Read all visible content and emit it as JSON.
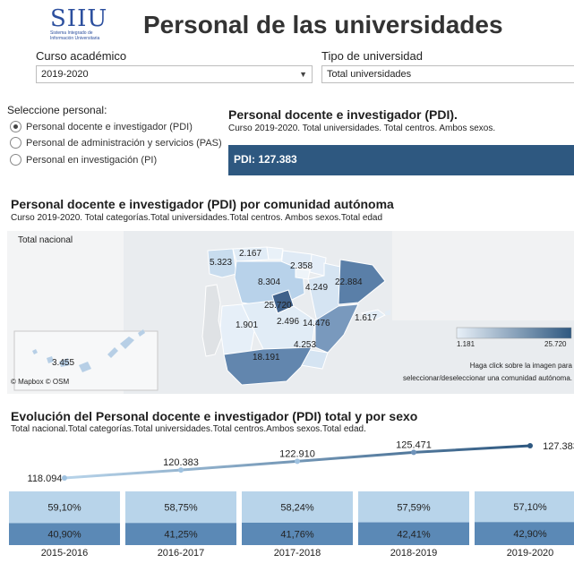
{
  "header": {
    "logo_text": "SIIU",
    "logo_sub1": "Sistema Integrado de",
    "logo_sub2": "Información Universitaria",
    "title": "Personal de las universidades"
  },
  "filters": {
    "curso_label": "Curso académico",
    "curso_value": "2019-2020",
    "tipo_label": "Tipo de universidad",
    "tipo_value": "Total universidades"
  },
  "personal_selector": {
    "title": "Seleccione personal:",
    "options": [
      {
        "label": "Personal docente e investigador (PDI)",
        "selected": true
      },
      {
        "label": "Personal de administración y servicios (PAS)",
        "selected": false
      },
      {
        "label": "Personal en investigación (PI)",
        "selected": false
      }
    ]
  },
  "pdi_summary": {
    "title": "Personal docente e investigador (PDI).",
    "subtitle": "Curso  2019-2020. Total universidades. Total centros. Ambos sexos.",
    "bar_text": "PDI: 127.383"
  },
  "map_section": {
    "title": "Personal docente e investigador (PDI) por comunidad autónoma",
    "subtitle": "Curso 2019-2020. Total categorías.Total universidades.Total centros. Ambos sexos.Total edad",
    "map_label": "Total nacional",
    "attribution": "© Mapbox  © OSM",
    "legend_min": "1.181",
    "legend_max": "25.720",
    "note_line1": "Haga click sobre la imagen para",
    "note_line2": "seleccionar/deseleccionar una comunidad autónoma.",
    "regions": [
      {
        "name": "Galicia",
        "value": "5.323",
        "num": 5323
      },
      {
        "name": "Asturias",
        "value": "2.167",
        "num": 2167
      },
      {
        "name": "País Vasco",
        "value": "2.358",
        "num": 2358
      },
      {
        "name": "Castilla y León",
        "value": "8.304",
        "num": 8304
      },
      {
        "name": "Aragón",
        "value": "4.249",
        "num": 4249
      },
      {
        "name": "Cataluña",
        "value": "22.884",
        "num": 22884
      },
      {
        "name": "Madrid",
        "value": "25.720",
        "num": 25720
      },
      {
        "name": "Castilla-La Mancha",
        "value": "2.496",
        "num": 2496
      },
      {
        "name": "Extremadura",
        "value": "1.901",
        "num": 1901
      },
      {
        "name": "C. Valenciana",
        "value": "14.476",
        "num": 14476
      },
      {
        "name": "Baleares",
        "value": "1.617",
        "num": 1617
      },
      {
        "name": "Murcia",
        "value": "4.253",
        "num": 4253
      },
      {
        "name": "Andalucía",
        "value": "18.191",
        "num": 18191
      },
      {
        "name": "Canarias",
        "value": "3.455",
        "num": 3455
      }
    ]
  },
  "chart_data": {
    "type": "line",
    "title": "Evolución del Personal docente e investigador (PDI) total y por sexo",
    "subtitle": "Total nacional.Total categorías.Total universidades.Total centros.Ambos sexos.Total edad.",
    "categories": [
      "2015-2016",
      "2016-2017",
      "2017-2018",
      "2018-2019",
      "2019-2020"
    ],
    "series": [
      {
        "values": [
          118094,
          120383,
          122910,
          125471,
          127383
        ],
        "labels": [
          "118.094",
          "120.383",
          "122.910",
          "125.471",
          "127.383"
        ]
      }
    ],
    "sex_split": {
      "type": "bar",
      "top": [
        59.1,
        58.75,
        58.24,
        57.59,
        57.1
      ],
      "top_labels": [
        "59,10%",
        "58,75%",
        "58,24%",
        "57,59%",
        "57,10%"
      ],
      "bottom": [
        40.9,
        41.25,
        41.76,
        42.41,
        42.9
      ],
      "bottom_labels": [
        "40,90%",
        "41,25%",
        "41,76%",
        "42,41%",
        "42,90%"
      ]
    },
    "colors": {
      "line_start": "#b8d4ea",
      "line_end": "#2e5880",
      "top": "#b8d4ea",
      "bottom": "#5b89b6"
    }
  }
}
